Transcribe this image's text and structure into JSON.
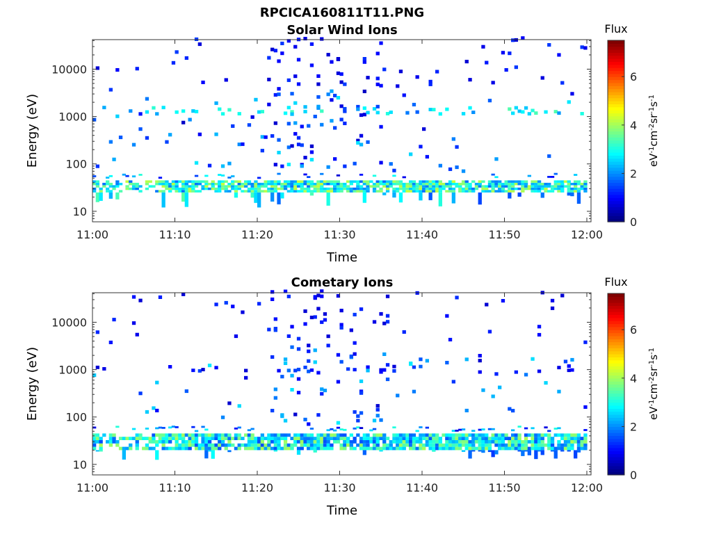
{
  "figure_title": "RPCICA160811T11.PNG",
  "colorbar": {
    "title": "Flux",
    "label": "eV-1cm-2sr-1s-1",
    "range": [
      0,
      7.5
    ],
    "ticks": [
      "0",
      "2",
      "4",
      "6"
    ],
    "colormap": "jet"
  },
  "chart_data": [
    {
      "type": "heatmap",
      "title": "Solar Wind Ions",
      "xlabel": "Time",
      "ylabel": "Energy (eV)",
      "x_ticks": [
        "11:00",
        "11:10",
        "11:20",
        "11:30",
        "11:40",
        "11:50",
        "12:00"
      ],
      "y_ticks": [
        "10",
        "100",
        "1000",
        "10000"
      ],
      "y_scale": "log",
      "y_range_eV": [
        6,
        42000
      ],
      "x_range": [
        "11:00",
        "12:00"
      ],
      "features": {
        "low_band_eV": [
          25,
          45
        ],
        "mid_band_eV": 1300,
        "sparse_high_energy": true
      },
      "seed": 11
    },
    {
      "type": "heatmap",
      "title": "Cometary Ions",
      "xlabel": "Time",
      "ylabel": "Energy (eV)",
      "x_ticks": [
        "11:00",
        "11:10",
        "11:20",
        "11:30",
        "11:40",
        "11:50",
        "12:00"
      ],
      "y_ticks": [
        "10",
        "100",
        "1000",
        "10000"
      ],
      "y_scale": "log",
      "y_range_eV": [
        6,
        42000
      ],
      "x_range": [
        "11:00",
        "12:00"
      ],
      "features": {
        "low_band_eV": [
          20,
          45
        ],
        "mid_band_eV": 1000,
        "sparse_high_energy": true
      },
      "seed": 37
    }
  ]
}
